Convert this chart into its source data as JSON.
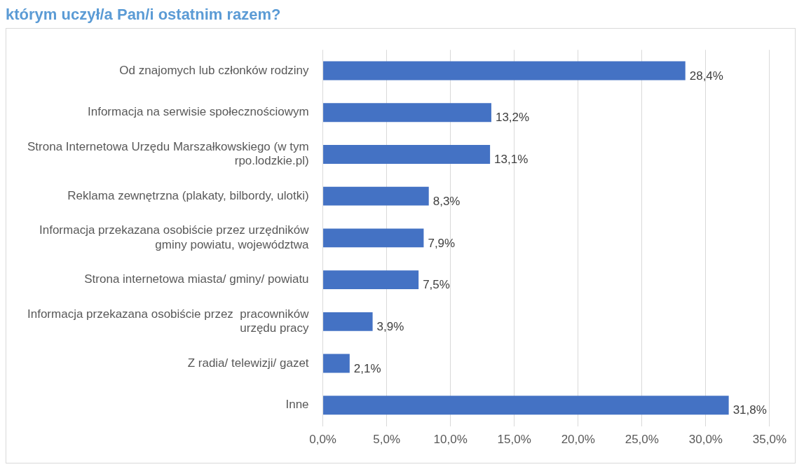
{
  "chart_data": {
    "type": "bar",
    "orientation": "horizontal",
    "title": "którym uczył/a Pan/i ostatnim razem?",
    "categories": [
      "Od znajomych lub członków rodziny",
      "Informacja na serwisie społecznościowym",
      "Strona Internetowa Urzędu Marszałkowskiego (w tym rpo.lodzkie.pl)",
      "Reklama zewnętrzna (plakaty, bilbordy, ulotki)",
      "Informacja przekazana osobiście przez urzędników gminy powiatu, województwa",
      "Strona internetowa miasta/ gminy/ powiatu",
      "Informacja przekazana osobiście przez  pracowników urzędu pracy",
      "Z radia/ telewizji/ gazet",
      "Inne"
    ],
    "values": [
      28.4,
      13.2,
      13.1,
      8.3,
      7.9,
      7.5,
      3.9,
      2.1,
      31.8
    ],
    "value_labels": [
      "28,4%",
      "13,2%",
      "13,1%",
      "8,3%",
      "7,9%",
      "7,5%",
      "3,9%",
      "2,1%",
      "31,8%"
    ],
    "color": "#4472c4",
    "xlim": [
      0,
      35
    ],
    "xticks": [
      {
        "value": 0,
        "label": "0,0%"
      },
      {
        "value": 5,
        "label": "5,0%"
      },
      {
        "value": 10,
        "label": "10,0%"
      },
      {
        "value": 15,
        "label": "15,0%"
      },
      {
        "value": 20,
        "label": "20,0%"
      },
      {
        "value": 25,
        "label": "25,0%"
      },
      {
        "value": 30,
        "label": "30,0%"
      },
      {
        "value": 35,
        "label": "35,0%"
      }
    ],
    "grid": "x"
  }
}
